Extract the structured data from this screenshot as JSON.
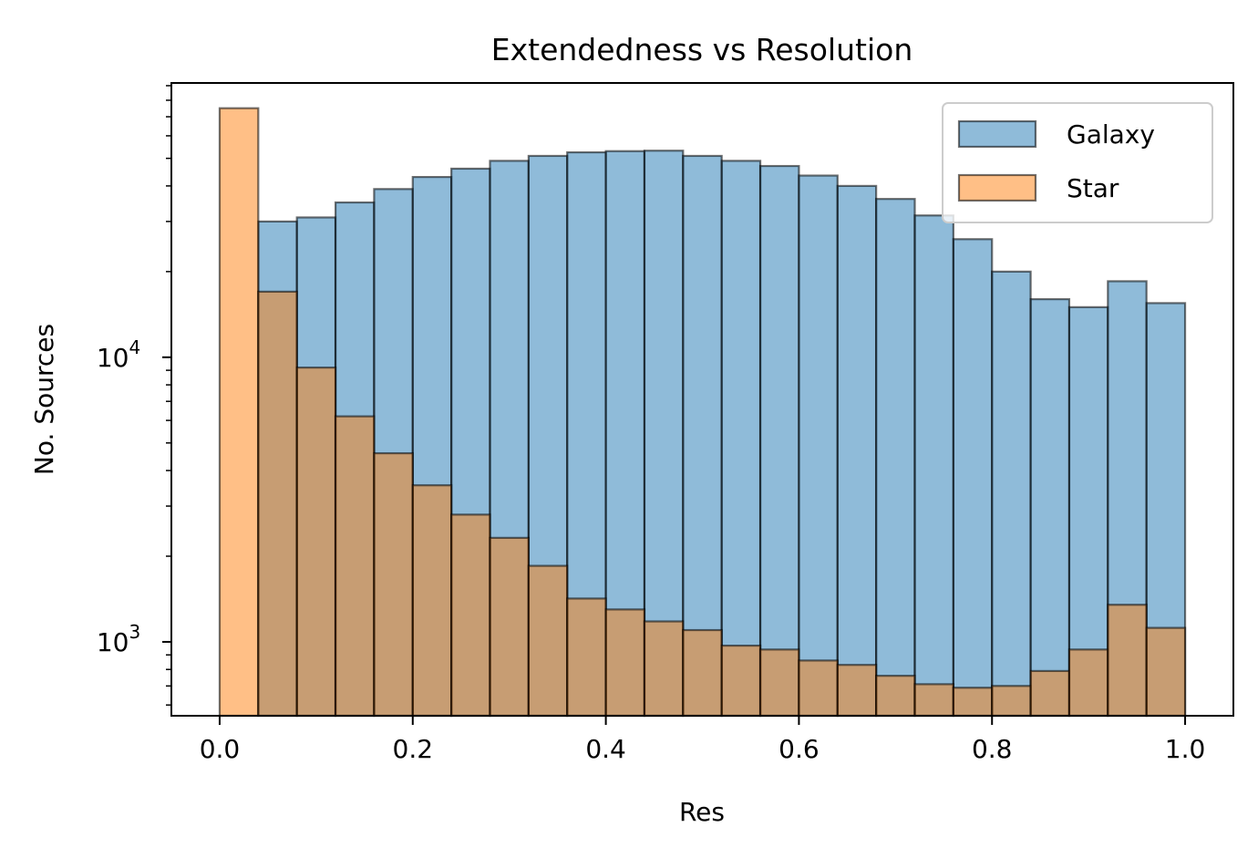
{
  "chart_data": {
    "type": "histogram",
    "title": "Extendedness vs Resolution",
    "xlabel": "Res",
    "ylabel": "No. Sources",
    "xlim": [
      -0.05,
      1.05
    ],
    "ylim": [
      550,
      92000
    ],
    "yscale": "log",
    "grid": false,
    "legend_position": "top-right",
    "bin_edges": [
      0.0,
      0.04,
      0.08,
      0.12,
      0.16,
      0.2,
      0.24,
      0.28,
      0.32,
      0.36,
      0.4,
      0.44,
      0.48,
      0.52,
      0.56,
      0.6,
      0.64,
      0.68,
      0.72,
      0.76,
      0.8,
      0.84,
      0.88,
      0.92,
      0.96,
      1.0
    ],
    "x_ticks": [
      {
        "value": 0.0,
        "label": "0.0"
      },
      {
        "value": 0.2,
        "label": "0.2"
      },
      {
        "value": 0.4,
        "label": "0.4"
      },
      {
        "value": 0.6,
        "label": "0.6"
      },
      {
        "value": 0.8,
        "label": "0.8"
      },
      {
        "value": 1.0,
        "label": "1.0"
      }
    ],
    "y_major_ticks": [
      {
        "value": 1000,
        "base": "10",
        "exp": "3"
      },
      {
        "value": 10000,
        "base": "10",
        "exp": "4"
      }
    ],
    "y_minor_ticks": [
      600,
      700,
      800,
      900,
      2000,
      3000,
      4000,
      5000,
      6000,
      7000,
      8000,
      9000,
      20000,
      30000,
      40000,
      50000,
      60000,
      70000,
      80000,
      90000
    ],
    "series": [
      {
        "name": "Galaxy",
        "color": "#1f77b4",
        "values": [
          550,
          30000,
          31000,
          35000,
          39000,
          43000,
          46000,
          49000,
          51000,
          52500,
          53000,
          53200,
          51000,
          49000,
          47000,
          43500,
          40000,
          36000,
          31500,
          26000,
          20000,
          16000,
          15000,
          18500,
          15500
        ]
      },
      {
        "name": "Star",
        "color": "#ff7f0e",
        "values": [
          75000,
          17000,
          9200,
          6200,
          4600,
          3550,
          2800,
          2320,
          1850,
          1420,
          1300,
          1180,
          1100,
          970,
          940,
          860,
          830,
          760,
          710,
          690,
          700,
          790,
          940,
          1350,
          1120
        ]
      }
    ]
  }
}
